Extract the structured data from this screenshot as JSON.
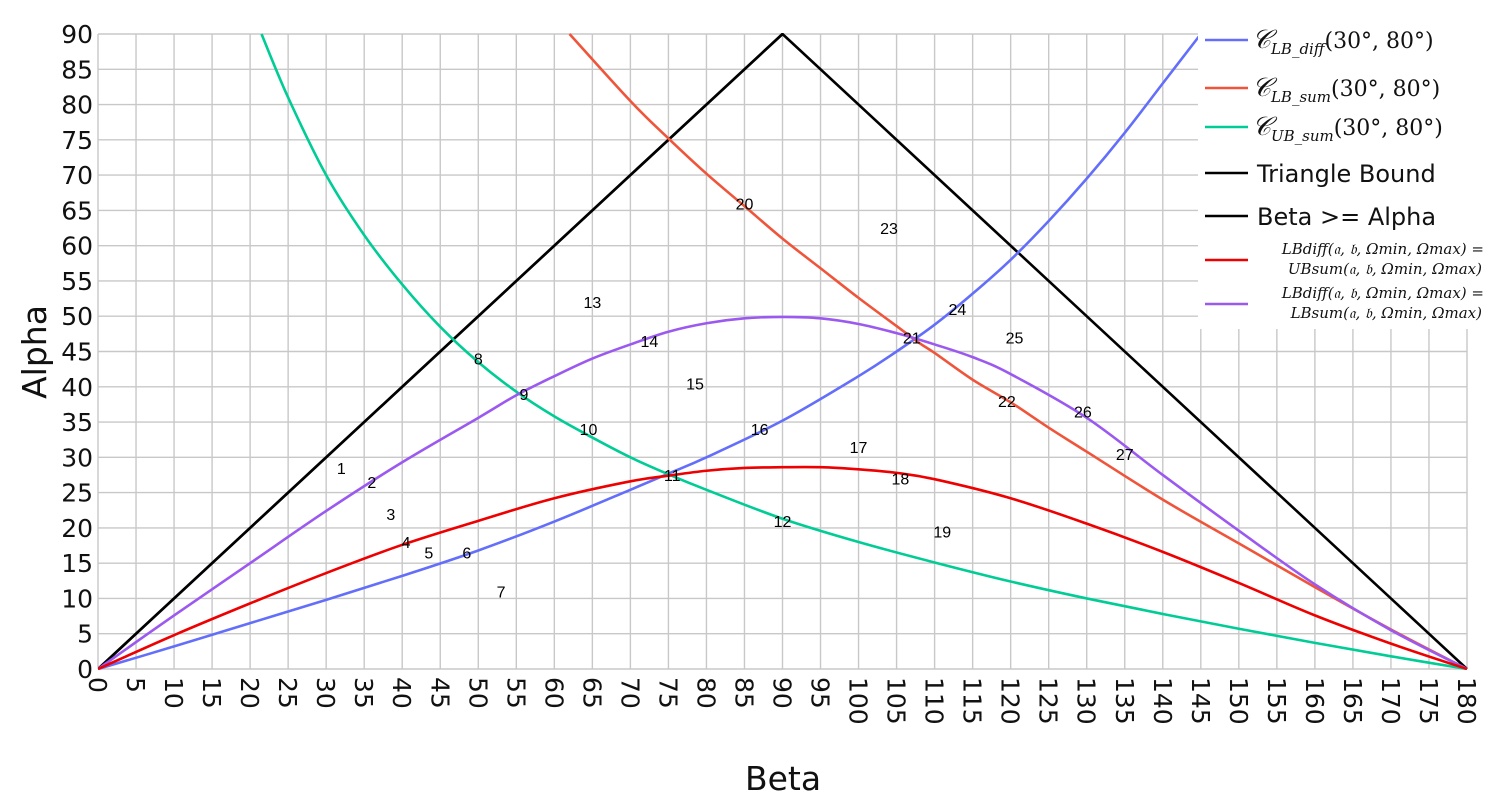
{
  "chart_data": {
    "type": "line",
    "xlabel": "Beta",
    "ylabel": "Alpha",
    "xlim": [
      0,
      182
    ],
    "ylim": [
      0,
      90
    ],
    "xticks": [
      0,
      5,
      10,
      15,
      20,
      25,
      30,
      35,
      40,
      45,
      50,
      55,
      60,
      65,
      70,
      75,
      80,
      85,
      90,
      95,
      100,
      105,
      110,
      115,
      120,
      125,
      130,
      135,
      140,
      145,
      150,
      155,
      160,
      165,
      170,
      175,
      180
    ],
    "yticks": [
      0,
      5,
      10,
      15,
      20,
      25,
      30,
      35,
      40,
      45,
      50,
      55,
      60,
      65,
      70,
      75,
      80,
      85,
      90
    ],
    "grid": true,
    "legend_position": "top-right",
    "series": [
      {
        "name": "𝒞LB_diff(30°, 80°)",
        "legend_main": "𝒞",
        "legend_sub": "LB_diff",
        "legend_args": "(30°, 80°)",
        "color": "#636efa",
        "x": [
          0,
          10,
          20,
          30,
          40,
          50,
          60,
          70,
          75,
          80,
          90,
          100,
          105,
          110,
          115,
          120,
          125,
          130,
          135,
          140,
          145
        ],
        "y": [
          0,
          3.2,
          6.5,
          9.8,
          13.2,
          16.8,
          20.9,
          25.4,
          27.7,
          30.0,
          35.2,
          41.5,
          45.0,
          48.8,
          53.2,
          58.0,
          63.5,
          69.5,
          76.0,
          83.0,
          90.0
        ]
      },
      {
        "name": "𝒞LB_sum(30°, 80°)",
        "legend_main": "𝒞",
        "legend_sub": "LB_sum",
        "legend_args": "(30°, 80°)",
        "color": "#ef553b",
        "x": [
          62,
          70,
          75,
          80,
          85,
          90,
          95,
          100,
          105,
          108,
          110,
          115,
          120,
          125,
          130,
          140,
          150,
          160,
          170,
          180
        ],
        "y": [
          90,
          80.5,
          75.2,
          70.2,
          65.6,
          61.0,
          56.8,
          52.6,
          48.6,
          46.2,
          44.8,
          41.0,
          37.8,
          34.2,
          30.8,
          24.0,
          17.8,
          11.6,
          5.6,
          0
        ]
      },
      {
        "name": "𝒞UB_sum(30°, 80°)",
        "legend_main": "𝒞",
        "legend_sub": "UB_sum",
        "legend_args": "(30°, 80°)",
        "color": "#00cc96",
        "x": [
          21.5,
          25,
          30,
          35,
          40,
          45,
          50,
          55,
          60,
          65,
          70,
          75,
          80,
          90,
          100,
          110,
          120,
          130,
          140,
          150,
          160,
          170,
          180
        ],
        "y": [
          90,
          81.0,
          70.0,
          61.5,
          54.5,
          48.5,
          43.5,
          39.3,
          35.8,
          32.8,
          30.0,
          27.6,
          25.4,
          21.3,
          18.0,
          15.1,
          12.4,
          10.0,
          7.8,
          5.7,
          3.7,
          1.8,
          0
        ]
      },
      {
        "name": "Triangle Bound",
        "color": "#000000",
        "x": [
          0,
          90,
          180
        ],
        "y": [
          0,
          90,
          0
        ]
      },
      {
        "name": "Beta >= Alpha",
        "color": "#000000",
        "x": [
          0,
          90
        ],
        "y": [
          0,
          90
        ]
      },
      {
        "name": "LBdiff(𝔞, 𝔟, Ωmin, Ωmax) = UBsum(𝔞, 𝔟, Ωmin, Ωmax)",
        "legend_line1": "LBdiff(𝔞, 𝔟, Ωmin, Ωmax) =",
        "legend_line2": "UBsum(𝔞, 𝔟, Ωmin, Ωmax)",
        "color": "#ee0000",
        "x": [
          0,
          10,
          20,
          30,
          40,
          50,
          60,
          70,
          75,
          80,
          85,
          90,
          95,
          100,
          105,
          110,
          120,
          130,
          140,
          150,
          160,
          170,
          180
        ],
        "y": [
          0,
          4.8,
          9.3,
          13.6,
          17.6,
          21.0,
          24.2,
          26.6,
          27.4,
          28.1,
          28.5,
          28.6,
          28.6,
          28.3,
          27.8,
          26.9,
          24.2,
          20.6,
          16.6,
          12.2,
          7.6,
          3.6,
          0
        ]
      },
      {
        "name": "LBdiff(𝔞, 𝔟, Ωmin, Ωmax) = LBsum(𝔞, 𝔟, Ωmin, Ωmax)",
        "legend_line1": "LBdiff(𝔞, 𝔟, Ωmin, Ωmax) =",
        "legend_line2": "LBsum(𝔞, 𝔟, Ωmin, Ωmax)",
        "color": "#9b59f0",
        "x": [
          0,
          10,
          20,
          30,
          40,
          50,
          55,
          60,
          65,
          70,
          75,
          80,
          85,
          90,
          95,
          100,
          105,
          110,
          115,
          120,
          130,
          140,
          150,
          160,
          170,
          180
        ],
        "y": [
          0,
          7.6,
          15.0,
          22.4,
          29.3,
          35.6,
          38.8,
          41.5,
          44.0,
          46.0,
          47.8,
          49.0,
          49.7,
          49.9,
          49.7,
          48.9,
          47.6,
          46.0,
          44.2,
          41.8,
          35.6,
          27.5,
          19.6,
          12.0,
          5.5,
          0
        ]
      }
    ],
    "annotations": [
      {
        "text": "1",
        "x": 32,
        "y": 28.5
      },
      {
        "text": "2",
        "x": 36,
        "y": 26.5
      },
      {
        "text": "3",
        "x": 38.5,
        "y": 22
      },
      {
        "text": "4",
        "x": 40.5,
        "y": 18
      },
      {
        "text": "5",
        "x": 43.5,
        "y": 16.5
      },
      {
        "text": "6",
        "x": 48.5,
        "y": 16.5
      },
      {
        "text": "7",
        "x": 53,
        "y": 11
      },
      {
        "text": "8",
        "x": 50,
        "y": 44
      },
      {
        "text": "9",
        "x": 56,
        "y": 39
      },
      {
        "text": "10",
        "x": 64.5,
        "y": 34
      },
      {
        "text": "11",
        "x": 75.5,
        "y": 27.5
      },
      {
        "text": "12",
        "x": 90,
        "y": 21
      },
      {
        "text": "13",
        "x": 65,
        "y": 52
      },
      {
        "text": "14",
        "x": 72.5,
        "y": 46.5
      },
      {
        "text": "15",
        "x": 78.5,
        "y": 40.5
      },
      {
        "text": "16",
        "x": 87,
        "y": 34
      },
      {
        "text": "17",
        "x": 100,
        "y": 31.5
      },
      {
        "text": "18",
        "x": 105.5,
        "y": 27
      },
      {
        "text": "19",
        "x": 111,
        "y": 19.5
      },
      {
        "text": "20",
        "x": 85,
        "y": 66
      },
      {
        "text": "21",
        "x": 107,
        "y": 47
      },
      {
        "text": "22",
        "x": 119.5,
        "y": 38
      },
      {
        "text": "23",
        "x": 104,
        "y": 62.5
      },
      {
        "text": "24",
        "x": 113,
        "y": 51
      },
      {
        "text": "25",
        "x": 120.5,
        "y": 47
      },
      {
        "text": "26",
        "x": 129.5,
        "y": 36.5
      },
      {
        "text": "27",
        "x": 135,
        "y": 30.5
      }
    ]
  }
}
